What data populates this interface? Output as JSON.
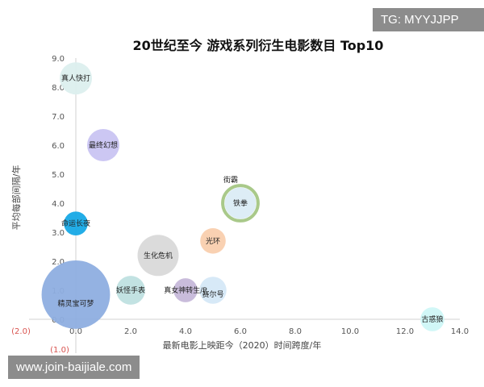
{
  "watermarks": {
    "top_right": "TG: MYYJJPP",
    "bottom_left": "www.join-baijiale.com"
  },
  "chart_data": {
    "type": "scatter",
    "subtype": "bubble",
    "title": "20世纪至今  游戏系列衍生电影数目 Top10",
    "xlabel": "最新电影上映距今（2020）时间跨度/年",
    "ylabel": "平均每部间隔/年",
    "xlim": [
      -2,
      14
    ],
    "ylim": [
      -1,
      9
    ],
    "x_ticks": [
      "(2.0)",
      "0.0",
      "2.0",
      "4.0",
      "6.0",
      "8.0",
      "10.0",
      "12.0",
      "14.0"
    ],
    "x_tick_values": [
      -2,
      0,
      2,
      4,
      6,
      8,
      10,
      12,
      14
    ],
    "y_ticks": [
      "(1.0)",
      "0.0",
      "1.0",
      "2.0",
      "3.0",
      "4.0",
      "5.0",
      "6.0",
      "7.0",
      "8.0",
      "9.0"
    ],
    "y_tick_values": [
      -1,
      0,
      1,
      2,
      3,
      4,
      5,
      6,
      7,
      8,
      9
    ],
    "negative_tick_color": "#d9534f",
    "grid": false,
    "points": [
      {
        "label": "真人快打",
        "x": 0,
        "y": 8.3,
        "size": 4,
        "color": "#dcefee"
      },
      {
        "label": "最终幻想",
        "x": 1,
        "y": 6.0,
        "size": 4,
        "color": "#c9c4f2"
      },
      {
        "label": "街霸",
        "x": 6,
        "y": 4.0,
        "size": 4.8,
        "color": "#a9c98a",
        "ring": true
      },
      {
        "label": "铁拳",
        "x": 6,
        "y": 4.0,
        "size": 3.8,
        "color": "#dbecf6"
      },
      {
        "label": "命运长夜",
        "x": 0,
        "y": 3.3,
        "size": 2.2,
        "color": "#17a9e6"
      },
      {
        "label": "光环",
        "x": 5,
        "y": 2.7,
        "size": 2.5,
        "color": "#f9cfae"
      },
      {
        "label": "生化危机",
        "x": 3,
        "y": 2.2,
        "size": 6.5,
        "color": "#d9d9d9"
      },
      {
        "label": "精灵宝可梦",
        "x": 0,
        "y": 0.85,
        "size": 18,
        "color": "#8eaee0"
      },
      {
        "label": "妖怪手表",
        "x": 2,
        "y": 1.0,
        "size": 3.2,
        "color": "#bfe0e0"
      },
      {
        "label": "真女神转生/P",
        "x": 4,
        "y": 1.0,
        "size": 2.2,
        "color": "#c6b8d9"
      },
      {
        "label": "赛尔号",
        "x": 5,
        "y": 1.0,
        "size": 2.8,
        "color": "#d5e8f7"
      },
      {
        "label": "古惑狼",
        "x": 13,
        "y": 0,
        "size": 2.2,
        "color": "#cff7f7"
      }
    ]
  }
}
